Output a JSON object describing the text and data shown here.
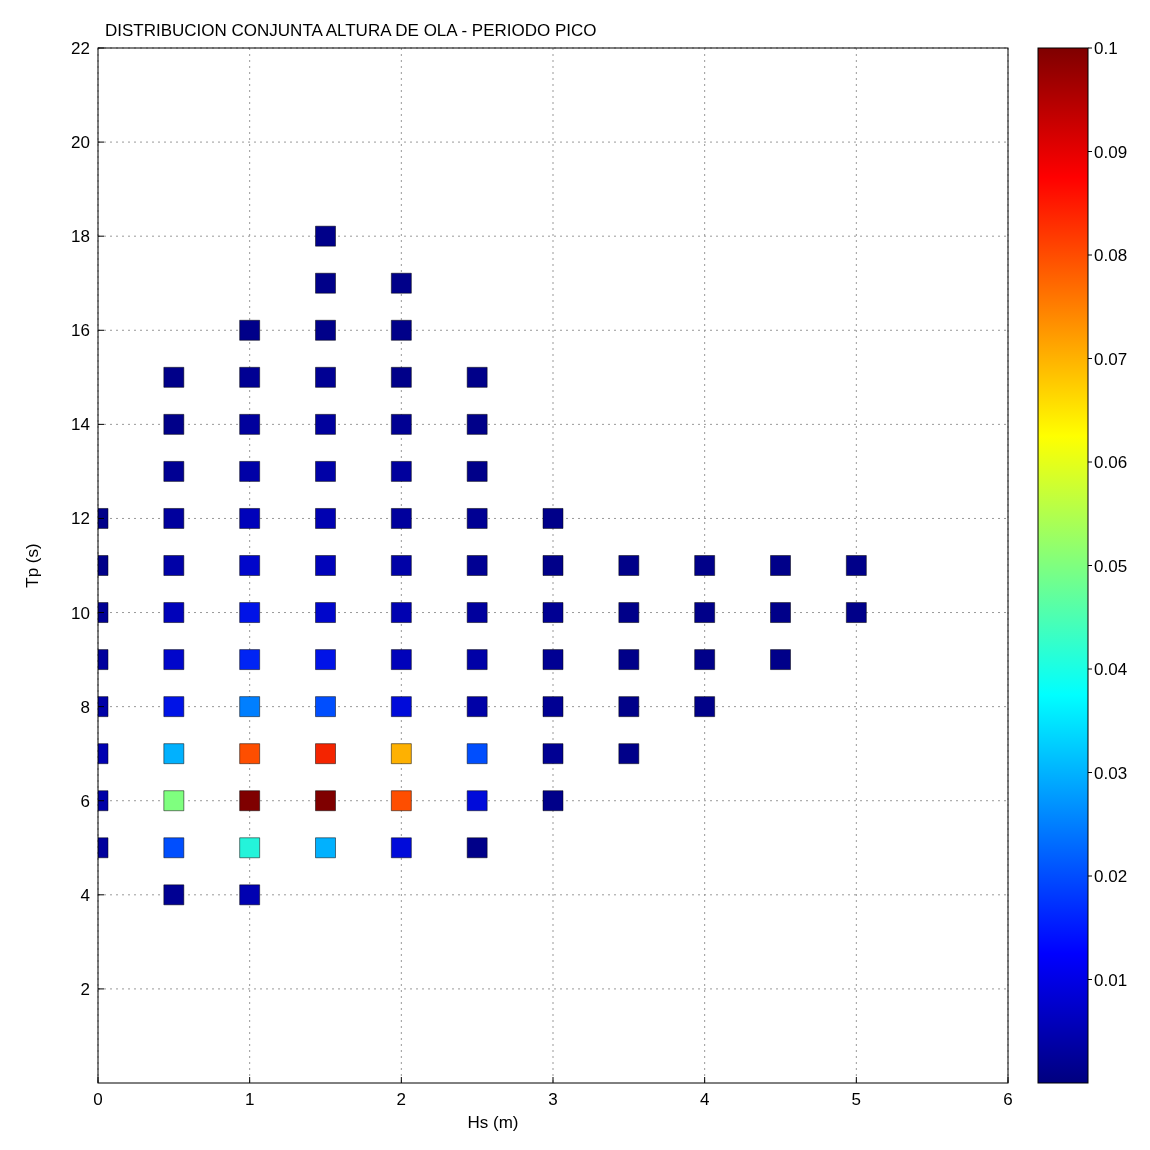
{
  "chart_data": {
    "type": "scatter",
    "title": "DISTRIBUCION CONJUNTA ALTURA DE OLA - PERIODO PICO",
    "xlabel": "Hs (m)",
    "ylabel": "Tp (s)",
    "marker": "square",
    "x": [
      1.5,
      1.5,
      2,
      1,
      1.5,
      2,
      0.5,
      1,
      1.5,
      2,
      2.5,
      0.5,
      1,
      1.5,
      2,
      2.5,
      0.5,
      1,
      1.5,
      2,
      2.5,
      0,
      0.5,
      1,
      1.5,
      2,
      2.5,
      3,
      0,
      0.5,
      1,
      1.5,
      2,
      2.5,
      3,
      3.5,
      4,
      4.5,
      5,
      0,
      0.5,
      1,
      1.5,
      2,
      2.5,
      3,
      3.5,
      4,
      4.5,
      5,
      0,
      0.5,
      1,
      1.5,
      2,
      2.5,
      3,
      3.5,
      4,
      4.5,
      0,
      0.5,
      1,
      1.5,
      2,
      2.5,
      3,
      3.5,
      4,
      0,
      0.5,
      1,
      1.5,
      2,
      2.5,
      3,
      3.5,
      0,
      0.5,
      1,
      1.5,
      2,
      2.5,
      3,
      0,
      0.5,
      1,
      1.5,
      2,
      2.5,
      0.5,
      1
    ],
    "values": [
      18,
      17,
      17,
      16,
      16,
      16,
      15,
      15,
      15,
      15,
      15,
      14,
      14,
      14,
      14,
      14,
      13,
      13,
      13,
      13,
      13,
      12,
      12,
      12,
      12,
      12,
      12,
      12,
      11,
      11,
      11,
      11,
      11,
      11,
      11,
      11,
      11,
      11,
      11,
      10,
      10,
      10,
      10,
      10,
      10,
      10,
      10,
      10,
      10,
      10,
      9,
      9,
      9,
      9,
      9,
      9,
      9,
      9,
      9,
      9,
      8,
      8,
      8,
      8,
      8,
      8,
      8,
      8,
      8,
      7,
      7,
      7,
      7,
      7,
      7,
      7,
      7,
      6,
      6,
      6,
      6,
      6,
      6,
      6,
      5,
      5,
      5,
      5,
      5,
      5,
      4,
      4
    ],
    "cvalues": [
      0.001,
      0.001,
      0.001,
      0.001,
      0.001,
      0.001,
      0.001,
      0.002,
      0.002,
      0.001,
      0.001,
      0.001,
      0.003,
      0.003,
      0.002,
      0.001,
      0.002,
      0.004,
      0.004,
      0.003,
      0.001,
      0.001,
      0.003,
      0.006,
      0.005,
      0.003,
      0.002,
      0.001,
      0.001,
      0.004,
      0.008,
      0.006,
      0.004,
      0.002,
      0.001,
      0.001,
      0.001,
      0.001,
      0.001,
      0.002,
      0.006,
      0.012,
      0.008,
      0.005,
      0.003,
      0.002,
      0.001,
      0.001,
      0.001,
      0.001,
      0.003,
      0.008,
      0.015,
      0.012,
      0.006,
      0.004,
      0.002,
      0.001,
      0.001,
      0.001,
      0.004,
      0.012,
      0.025,
      0.02,
      0.01,
      0.004,
      0.002,
      0.001,
      0.001,
      0.005,
      0.03,
      0.08,
      0.085,
      0.07,
      0.02,
      0.002,
      0.001,
      0.004,
      0.05,
      0.1,
      0.1,
      0.08,
      0.01,
      0.001,
      0.003,
      0.02,
      0.04,
      0.03,
      0.01,
      0.001,
      0.002,
      0.005
    ],
    "xlim": [
      0,
      6
    ],
    "xticks": [
      0,
      1,
      2,
      3,
      4,
      5,
      6
    ],
    "ylim": [
      0,
      22
    ],
    "yticks": [
      2,
      4,
      6,
      8,
      10,
      12,
      14,
      16,
      18,
      20,
      22
    ],
    "clim": [
      0,
      0.1
    ],
    "cticks": [
      0.01,
      0.02,
      0.03,
      0.04,
      0.05,
      0.06,
      0.07,
      0.08,
      0.09,
      0.1
    ],
    "grid": true
  }
}
